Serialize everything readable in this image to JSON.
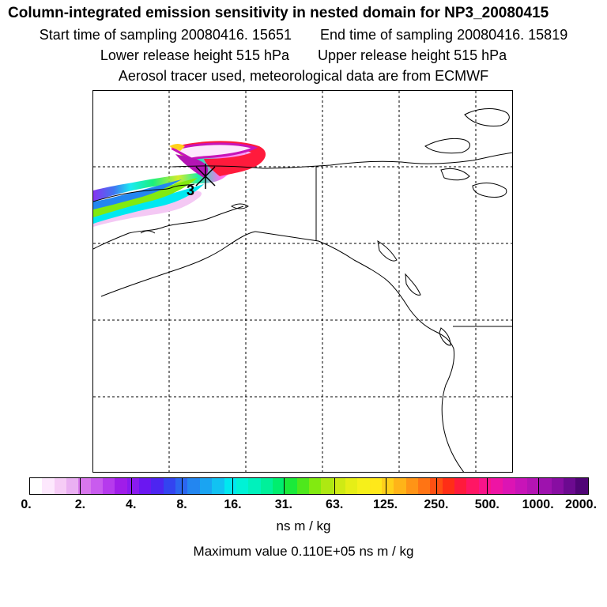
{
  "header": {
    "title": "Column-integrated emission sensitivity in nested domain for NP3_20080415",
    "start_label": "Start time of sampling 20080416. 15651",
    "end_label": "End time of sampling 20080416. 15819",
    "lower_label": "Lower release height  515 hPa",
    "upper_label": "Upper release height  515 hPa",
    "info": "Aerosol tracer used, meteorological data are from ECMWF"
  },
  "map": {
    "release_marker": "3",
    "marker_icon": "release-cross-icon"
  },
  "legend": {
    "tick_labels": [
      "0.",
      "2.",
      "4.",
      "8.",
      "16.",
      "31.",
      "63.",
      "125.",
      "250.",
      "500.",
      "1000.",
      "2000."
    ],
    "colors": [
      "#ffffff",
      "#fde8fd",
      "#f6ccf6",
      "#eab0f2",
      "#d877ec",
      "#c95bee",
      "#b63aed",
      "#a01de9",
      "#8a1aef",
      "#6b17f1",
      "#4d25f1",
      "#3344f0",
      "#2b66f0",
      "#2386f0",
      "#1aa4f2",
      "#12c2f2",
      "#00e8f0",
      "#00f2d6",
      "#00f1bc",
      "#00f09a",
      "#00ee6e",
      "#1aea3a",
      "#4ee81c",
      "#82ea10",
      "#aee812",
      "#cfea14",
      "#e6ee16",
      "#f6f01a",
      "#ffe81a",
      "#ffd01a",
      "#ffb418",
      "#ff9416",
      "#ff7414",
      "#ff5012",
      "#ff2e16",
      "#ff1a3c",
      "#ff1664",
      "#f9148a",
      "#ee14a4",
      "#dc14b4",
      "#c814b8",
      "#b414b4",
      "#9e12ae",
      "#880ea2",
      "#6c0a90",
      "#500476"
    ],
    "unit": "ns m / kg",
    "max_value": "Maximum value  0.110E+05 ns m / kg"
  }
}
